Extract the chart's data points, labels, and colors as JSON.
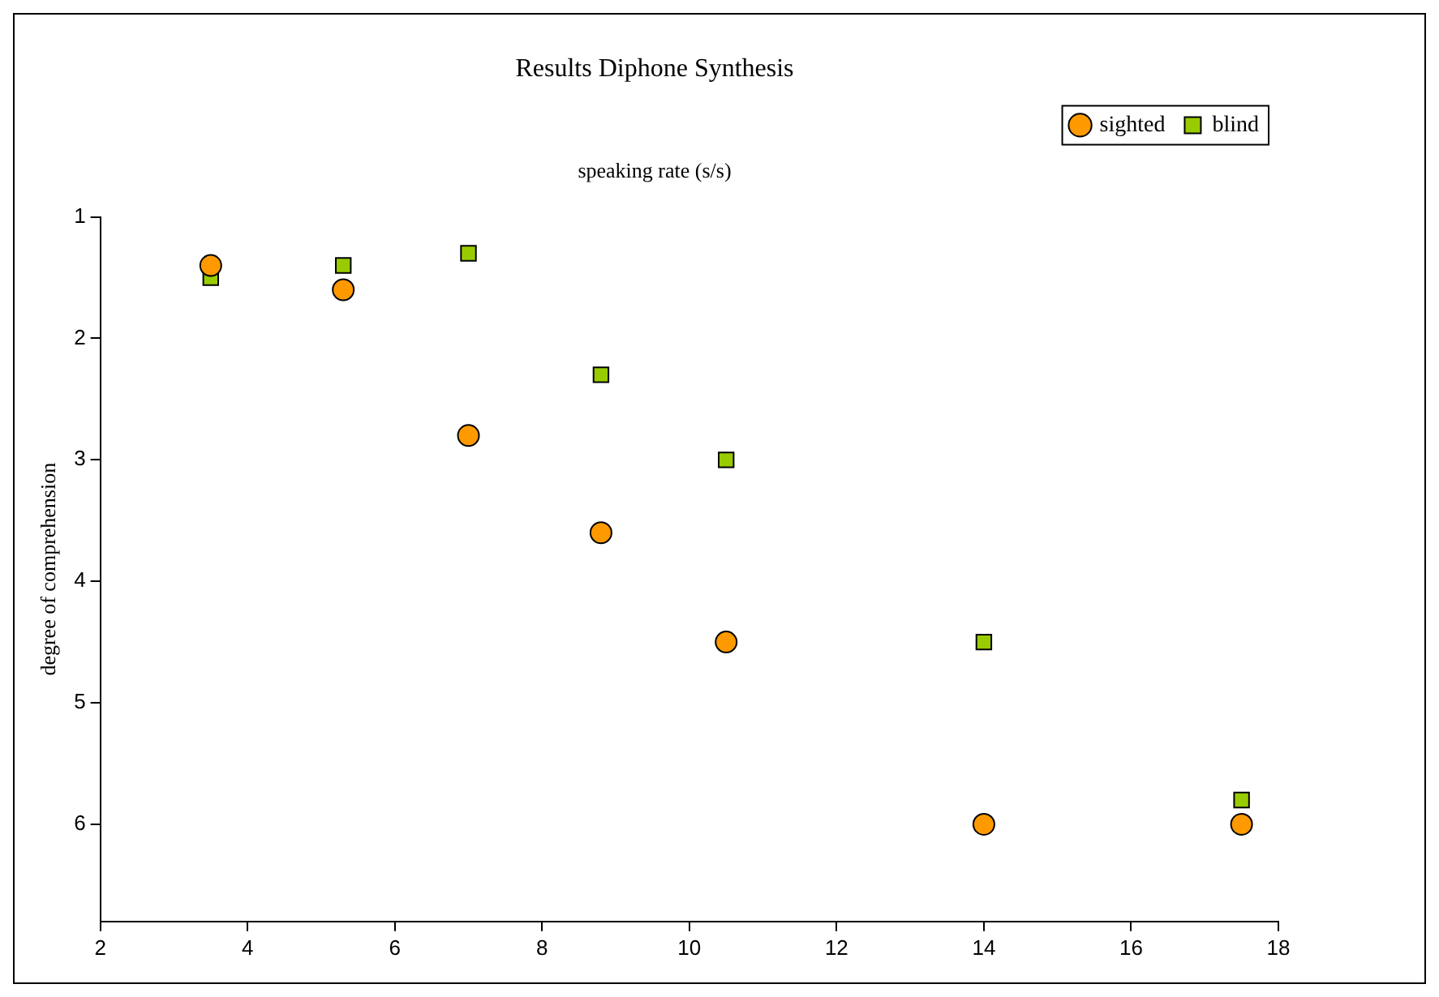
{
  "chart_data": {
    "type": "scatter",
    "title": "Results Diphone Synthesis",
    "xlabel": "speaking rate (s/s)",
    "ylabel": "degree of comprehension",
    "series": [
      {
        "name": "sighted",
        "color": "#ff9900",
        "marker": "circle",
        "x": [
          3.5,
          5.3,
          7,
          8.8,
          10.5,
          14,
          17.5
        ],
        "values": [
          1.4,
          1.6,
          2.8,
          3.6,
          4.5,
          6,
          6
        ]
      },
      {
        "name": "blind",
        "color": "#99cc00",
        "marker": "square",
        "x": [
          3.5,
          5.3,
          7,
          8.8,
          10.5,
          14,
          17.5
        ],
        "values": [
          1.5,
          1.4,
          1.3,
          2.3,
          3,
          4.5,
          5.8
        ]
      }
    ],
    "xlim": [
      2,
      18
    ],
    "xticks": [
      2,
      4,
      6,
      8,
      10,
      12,
      14,
      16,
      18
    ],
    "ylim": [
      6.8,
      1
    ],
    "yticks": [
      1,
      2,
      3,
      4,
      5,
      6
    ],
    "grid": false,
    "legend": "top right"
  }
}
